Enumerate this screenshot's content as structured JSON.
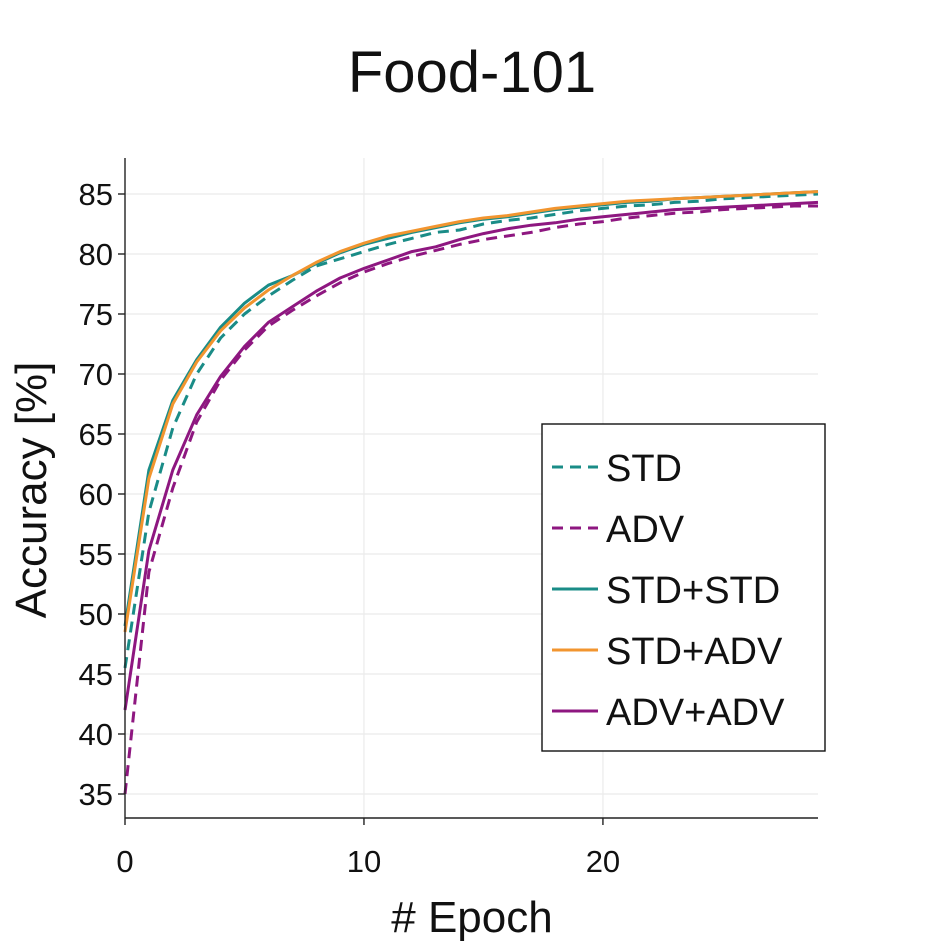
{
  "chart_data": {
    "type": "line",
    "title": "Food-101",
    "xlabel": "# Epoch",
    "ylabel": "Accuracy [%]",
    "xlim": [
      0,
      29
    ],
    "ylim": [
      33,
      88
    ],
    "xticks": [
      0,
      10,
      20
    ],
    "yticks": [
      35,
      40,
      45,
      50,
      55,
      60,
      65,
      70,
      75,
      80,
      85
    ],
    "grid": true,
    "legend_position": "right",
    "x": [
      0,
      1,
      2,
      3,
      4,
      5,
      6,
      7,
      8,
      9,
      10,
      11,
      12,
      13,
      14,
      15,
      16,
      17,
      18,
      19,
      20,
      21,
      22,
      23,
      24,
      25,
      26,
      27,
      28,
      29
    ],
    "series": [
      {
        "name": "STD",
        "color": "#1a8c87",
        "dash": "dashed",
        "values": [
          45.5,
          58.5,
          65.5,
          70.0,
          73.0,
          75.0,
          76.5,
          77.8,
          79.0,
          79.6,
          80.2,
          80.8,
          81.3,
          81.8,
          82.0,
          82.5,
          82.8,
          83.0,
          83.3,
          83.6,
          83.8,
          84.0,
          84.1,
          84.3,
          84.4,
          84.6,
          84.7,
          84.8,
          84.9,
          85.0
        ]
      },
      {
        "name": "ADV",
        "color": "#8e1780",
        "dash": "dashed",
        "values": [
          35.0,
          53.5,
          60.5,
          66.0,
          69.5,
          72.0,
          74.0,
          75.3,
          76.5,
          77.6,
          78.5,
          79.2,
          79.8,
          80.3,
          80.8,
          81.2,
          81.5,
          81.8,
          82.2,
          82.5,
          82.7,
          83.0,
          83.2,
          83.4,
          83.5,
          83.7,
          83.8,
          83.9,
          84.0,
          84.0
        ]
      },
      {
        "name": "STD+STD",
        "color": "#1a8c87",
        "dash": "solid",
        "values": [
          49.0,
          62.0,
          67.8,
          71.2,
          73.9,
          75.9,
          77.4,
          78.2,
          79.2,
          80.1,
          80.8,
          81.3,
          81.8,
          82.2,
          82.6,
          82.9,
          83.1,
          83.4,
          83.7,
          83.9,
          84.1,
          84.3,
          84.4,
          84.6,
          84.7,
          84.8,
          84.9,
          85.0,
          85.1,
          85.2
        ]
      },
      {
        "name": "STD+ADV",
        "color": "#f2952f",
        "dash": "solid",
        "values": [
          48.5,
          61.3,
          67.5,
          71.0,
          73.6,
          75.5,
          77.0,
          78.2,
          79.3,
          80.2,
          80.9,
          81.5,
          81.9,
          82.3,
          82.7,
          83.0,
          83.2,
          83.5,
          83.8,
          84.0,
          84.2,
          84.4,
          84.5,
          84.6,
          84.7,
          84.8,
          84.9,
          85.0,
          85.1,
          85.2
        ]
      },
      {
        "name": "ADV+ADV",
        "color": "#8e1780",
        "dash": "solid",
        "values": [
          42.0,
          55.3,
          62.0,
          66.6,
          69.8,
          72.3,
          74.3,
          75.6,
          76.9,
          78.0,
          78.8,
          79.5,
          80.2,
          80.6,
          81.2,
          81.7,
          82.1,
          82.4,
          82.6,
          82.9,
          83.1,
          83.3,
          83.5,
          83.7,
          83.8,
          83.9,
          84.0,
          84.1,
          84.2,
          84.3
        ]
      }
    ]
  }
}
